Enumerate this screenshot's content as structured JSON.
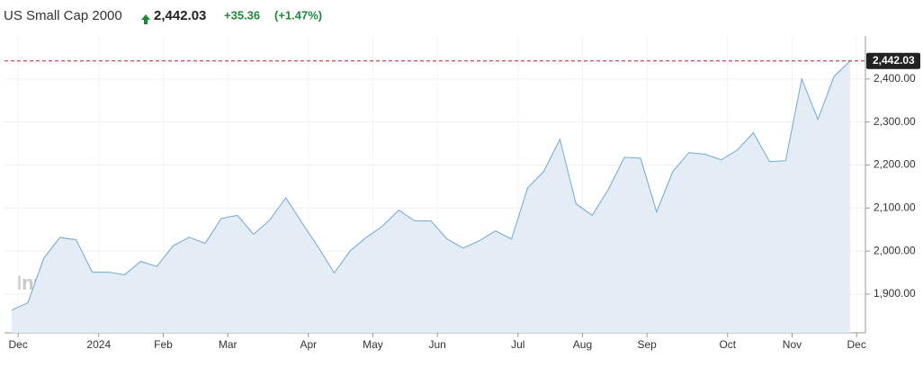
{
  "header": {
    "title": "US Small Cap 2000",
    "price": "2,442.03",
    "change": "+35.36",
    "change_pct": "(+1.47%)"
  },
  "chart_data": {
    "type": "area",
    "color": "#6fa8d6",
    "fill": "#e4edf6",
    "watermark": "Investing.com",
    "categories": [
      "Dec",
      null,
      null,
      null,
      null,
      "2024",
      null,
      null,
      null,
      "Feb",
      null,
      null,
      null,
      "Mar",
      null,
      null,
      null,
      null,
      "Apr",
      null,
      null,
      null,
      "May",
      null,
      null,
      null,
      "Jun",
      null,
      null,
      null,
      null,
      "Jul",
      null,
      null,
      null,
      "Aug",
      null,
      null,
      null,
      "Sep",
      null,
      null,
      null,
      null,
      "Oct",
      null,
      null,
      null,
      "Nov",
      null,
      null,
      null,
      "Dec"
    ],
    "values": [
      1863,
      1880,
      1984,
      2032,
      2026,
      1951,
      1951,
      1945,
      1976,
      1964,
      2012,
      2032,
      2018,
      2076,
      2083,
      2039,
      2072,
      2124,
      2066,
      2010,
      1949,
      2001,
      2032,
      2058,
      2095,
      2070,
      2070,
      2028,
      2007,
      2024,
      2047,
      2028,
      2147,
      2185,
      2260,
      2110,
      2083,
      2143,
      2218,
      2216,
      2091,
      2185,
      2229,
      2225,
      2212,
      2235,
      2275,
      2208,
      2210,
      2400,
      2306,
      2406,
      2442.03
    ],
    "ylim": [
      1810,
      2500
    ],
    "yticks": [
      {
        "value": 1900,
        "label": "1,900.00"
      },
      {
        "value": 2000,
        "label": "2,000.00"
      },
      {
        "value": 2100,
        "label": "2,100.00"
      },
      {
        "value": 2200,
        "label": "2,200.00"
      },
      {
        "value": 2300,
        "label": "2,300.00"
      },
      {
        "value": 2400,
        "label": "2,400.00"
      }
    ],
    "grid": true
  }
}
